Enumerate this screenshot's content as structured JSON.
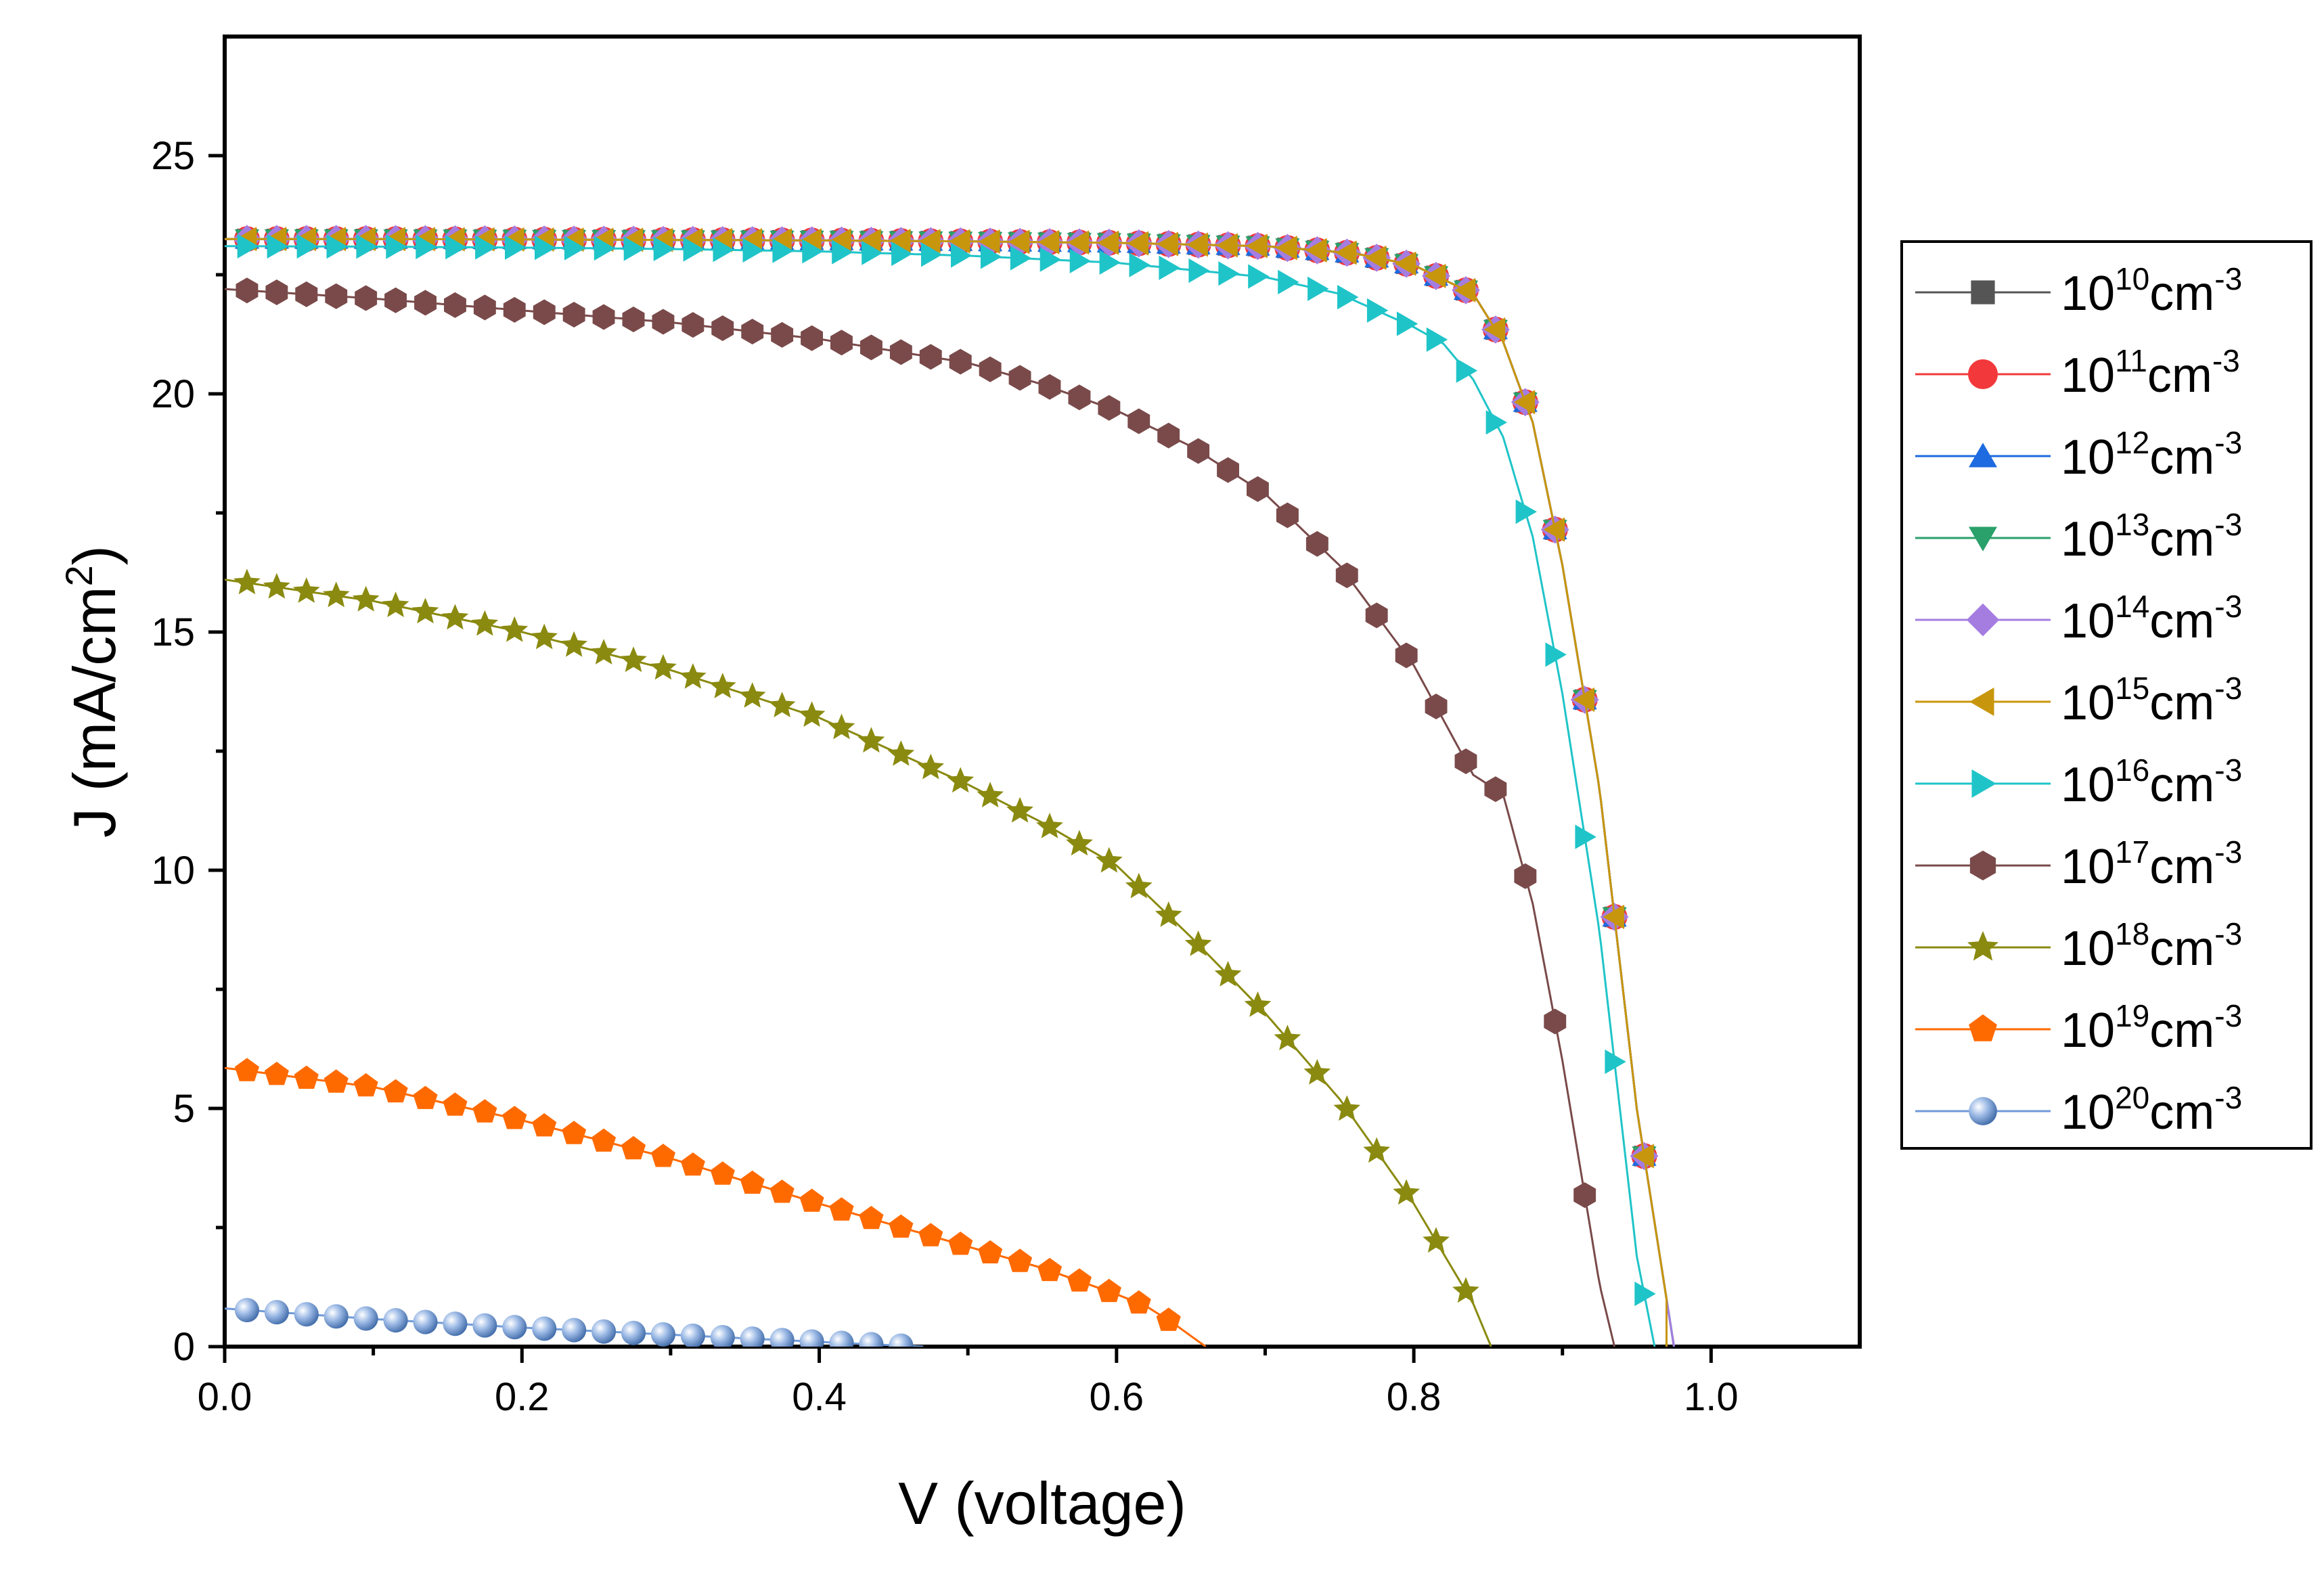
{
  "chart_data": {
    "type": "line",
    "title": "",
    "xlabel": "V (voltage)",
    "ylabel_parts": {
      "pre": "J (mA/cm",
      "sup": "2",
      "post": ")"
    },
    "xlim": [
      0.0,
      1.1
    ],
    "ylim": [
      0,
      27.5
    ],
    "xticks": [
      0.0,
      0.2,
      0.4,
      0.6,
      0.8,
      1.0
    ],
    "xtick_labels": [
      "0.0",
      "0.2",
      "0.4",
      "0.6",
      "0.8",
      "1.0"
    ],
    "yticks": [
      0,
      5,
      10,
      15,
      20,
      25
    ],
    "ytick_labels": [
      "0",
      "5",
      "10",
      "15",
      "20",
      "25"
    ],
    "x_minor_ticks": [
      0.1,
      0.3,
      0.5,
      0.7,
      0.9
    ],
    "y_minor_ticks": [
      2.5,
      7.5,
      12.5,
      17.5,
      22.5
    ],
    "grid": false,
    "legend_position": "outside-right",
    "series": [
      {
        "name": "1e10",
        "label_base": "10",
        "label_exp": "10",
        "label_unit": "cm",
        "label_unit_exp": "-3",
        "color": "#555555",
        "marker": "square",
        "profile": "A",
        "jsc": 23.25,
        "voc": 0.975
      },
      {
        "name": "1e11",
        "label_base": "10",
        "label_exp": "11",
        "label_unit": "cm",
        "label_unit_exp": "-3",
        "color": "#f2383a",
        "marker": "circle",
        "profile": "A",
        "jsc": 23.25,
        "voc": 0.975
      },
      {
        "name": "1e12",
        "label_base": "10",
        "label_exp": "12",
        "label_unit": "cm",
        "label_unit_exp": "-3",
        "color": "#1e6ae0",
        "marker": "triangle-up",
        "profile": "A",
        "jsc": 23.25,
        "voc": 0.975
      },
      {
        "name": "1e13",
        "label_base": "10",
        "label_exp": "13",
        "label_unit": "cm",
        "label_unit_exp": "-3",
        "color": "#2aa06a",
        "marker": "triangle-down",
        "profile": "A",
        "jsc": 23.25,
        "voc": 0.975
      },
      {
        "name": "1e14",
        "label_base": "10",
        "label_exp": "14",
        "label_unit": "cm",
        "label_unit_exp": "-3",
        "color": "#a57de0",
        "marker": "diamond",
        "profile": "A",
        "jsc": 23.25,
        "voc": 0.975
      },
      {
        "name": "1e15",
        "label_base": "10",
        "label_exp": "15",
        "label_unit": "cm",
        "label_unit_exp": "-3",
        "color": "#c8960c",
        "marker": "triangle-left",
        "profile": "A",
        "jsc": 23.2,
        "voc": 0.97
      },
      {
        "name": "1e16",
        "label_base": "10",
        "label_exp": "16",
        "label_unit": "cm",
        "label_unit_exp": "-3",
        "color": "#1fc4c8",
        "marker": "triangle-right",
        "profile": "B",
        "jsc": 23.1,
        "voc": 0.962
      },
      {
        "name": "1e17",
        "label_base": "10",
        "label_exp": "17",
        "label_unit": "cm",
        "label_unit_exp": "-3",
        "color": "#7a4a4a",
        "marker": "hexagon",
        "profile": "C",
        "jsc": 22.2,
        "voc": 0.935
      },
      {
        "name": "1e18",
        "label_base": "10",
        "label_exp": "18",
        "label_unit": "cm",
        "label_unit_exp": "-3",
        "color": "#8a8a10",
        "marker": "star",
        "profile": "D",
        "jsc": 16.1,
        "voc": 0.852
      },
      {
        "name": "1e19",
        "label_base": "10",
        "label_exp": "19",
        "label_unit": "cm",
        "label_unit_exp": "-3",
        "color": "#ff6a00",
        "marker": "pentagon",
        "profile": "E",
        "jsc": 5.85,
        "voc": 0.66
      },
      {
        "name": "1e20",
        "label_base": "10",
        "label_exp": "20",
        "label_unit": "cm",
        "label_unit_exp": "-3",
        "color": "#6f9ad8",
        "marker": "sphere",
        "profile": "F",
        "jsc": 0.8,
        "voc": 0.47
      }
    ],
    "profiles": {
      "A": [
        [
          0.0,
          23.25
        ],
        [
          0.1,
          23.25
        ],
        [
          0.2,
          23.24
        ],
        [
          0.3,
          23.23
        ],
        [
          0.4,
          23.22
        ],
        [
          0.5,
          23.2
        ],
        [
          0.6,
          23.17
        ],
        [
          0.7,
          23.1
        ],
        [
          0.76,
          22.95
        ],
        [
          0.8,
          22.7
        ],
        [
          0.84,
          22.1
        ],
        [
          0.86,
          21.1
        ],
        [
          0.88,
          19.4
        ],
        [
          0.9,
          16.4
        ],
        [
          0.925,
          11.7
        ],
        [
          0.95,
          5.0
        ],
        [
          0.975,
          0.0
        ]
      ],
      "B": [
        [
          0.0,
          23.1
        ],
        [
          0.1,
          23.09
        ],
        [
          0.2,
          23.07
        ],
        [
          0.3,
          23.04
        ],
        [
          0.4,
          22.99
        ],
        [
          0.5,
          22.9
        ],
        [
          0.6,
          22.75
        ],
        [
          0.7,
          22.45
        ],
        [
          0.75,
          22.1
        ],
        [
          0.8,
          21.4
        ],
        [
          0.82,
          21.05
        ],
        [
          0.84,
          20.3
        ],
        [
          0.86,
          19.1
        ],
        [
          0.88,
          17.0
        ],
        [
          0.9,
          13.7
        ],
        [
          0.925,
          8.7
        ],
        [
          0.95,
          1.9
        ],
        [
          0.962,
          0.0
        ]
      ],
      "C": [
        [
          0.0,
          22.2
        ],
        [
          0.1,
          22.0
        ],
        [
          0.2,
          21.75
        ],
        [
          0.3,
          21.5
        ],
        [
          0.4,
          21.15
        ],
        [
          0.45,
          20.9
        ],
        [
          0.5,
          20.65
        ],
        [
          0.55,
          20.2
        ],
        [
          0.6,
          19.65
        ],
        [
          0.65,
          18.9
        ],
        [
          0.7,
          17.9
        ],
        [
          0.75,
          16.4
        ],
        [
          0.8,
          14.3
        ],
        [
          0.84,
          12.0
        ],
        [
          0.86,
          11.6
        ],
        [
          0.88,
          9.3
        ],
        [
          0.9,
          6.0
        ],
        [
          0.925,
          1.3
        ],
        [
          0.935,
          0.0
        ]
      ],
      "D": [
        [
          0.0,
          16.1
        ],
        [
          0.1,
          15.65
        ],
        [
          0.2,
          15.0
        ],
        [
          0.3,
          14.2
        ],
        [
          0.4,
          13.2
        ],
        [
          0.5,
          11.8
        ],
        [
          0.55,
          11.0
        ],
        [
          0.6,
          10.1
        ],
        [
          0.65,
          8.6
        ],
        [
          0.7,
          7.0
        ],
        [
          0.75,
          5.2
        ],
        [
          0.8,
          3.0
        ],
        [
          0.84,
          0.9
        ],
        [
          0.852,
          0.0
        ]
      ],
      "E": [
        [
          0.0,
          5.85
        ],
        [
          0.1,
          5.45
        ],
        [
          0.2,
          4.75
        ],
        [
          0.3,
          3.95
        ],
        [
          0.4,
          3.0
        ],
        [
          0.5,
          2.1
        ],
        [
          0.55,
          1.65
        ],
        [
          0.6,
          1.1
        ],
        [
          0.62,
          0.85
        ],
        [
          0.64,
          0.45
        ],
        [
          0.66,
          0.0
        ]
      ],
      "F": [
        [
          0.0,
          0.8
        ],
        [
          0.1,
          0.58
        ],
        [
          0.2,
          0.4
        ],
        [
          0.3,
          0.25
        ],
        [
          0.4,
          0.1
        ],
        [
          0.47,
          0.0
        ]
      ]
    }
  }
}
